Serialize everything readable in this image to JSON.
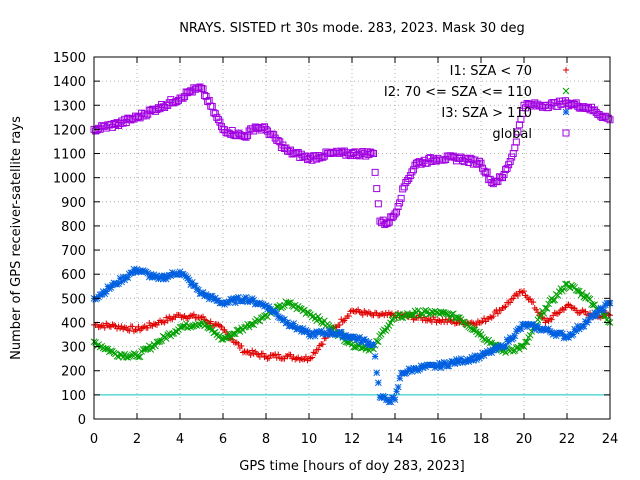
{
  "chart_data": {
    "type": "scatter",
    "title": "NRAYS. SISTED rt 30s mode. 283, 2023. Mask 30 deg",
    "xlabel": "GPS time [hours of doy 283, 2023]",
    "ylabel": "Number of GPS receiver-satellite rays",
    "xlim": [
      0,
      24
    ],
    "ylim": [
      0,
      1500
    ],
    "xticks": [
      "0",
      "2",
      "4",
      "6",
      "8",
      "10",
      "12",
      "14",
      "16",
      "18",
      "20",
      "22",
      "24"
    ],
    "yticks": [
      "0",
      "100",
      "200",
      "300",
      "400",
      "500",
      "600",
      "700",
      "800",
      "900",
      "1000",
      "1100",
      "1200",
      "1300",
      "1400",
      "1500"
    ],
    "grid": true,
    "legend_position": "top-right",
    "reference_line": {
      "y": 100,
      "color": "#00c8c8"
    },
    "series": [
      {
        "name": "I1: SZA < 70",
        "marker": "+",
        "color": "#e00000",
        "x": [
          0,
          1,
          2,
          3,
          4,
          5,
          6,
          7,
          8,
          9,
          10,
          11,
          12,
          13,
          13.5,
          14,
          15,
          16,
          17,
          18,
          19,
          19.5,
          20,
          21,
          22,
          23,
          24
        ],
        "y": [
          390,
          385,
          370,
          400,
          430,
          420,
          370,
          280,
          260,
          260,
          250,
          360,
          450,
          430,
          430,
          430,
          420,
          410,
          400,
          400,
          460,
          500,
          530,
          400,
          470,
          430,
          430
        ]
      },
      {
        "name": "I2: 70 <= SZA <= 110",
        "marker": "x",
        "color": "#00a000",
        "x": [
          0,
          1,
          2,
          3,
          4,
          5,
          6,
          7,
          8,
          9,
          10,
          11,
          12,
          13,
          13.5,
          14,
          15,
          16,
          17,
          18,
          19,
          20,
          21,
          22,
          23,
          24
        ],
        "y": [
          320,
          270,
          260,
          320,
          380,
          400,
          330,
          380,
          430,
          480,
          440,
          380,
          310,
          290,
          370,
          420,
          440,
          440,
          420,
          350,
          280,
          300,
          460,
          560,
          500,
          400
        ]
      },
      {
        "name": "I3: SZA > 110",
        "marker": "*",
        "color": "#0060e0",
        "x": [
          0,
          1,
          2,
          3,
          4,
          5,
          6,
          7,
          8,
          9,
          10,
          11,
          12,
          13,
          13.3,
          13.6,
          14,
          14.3,
          15,
          16,
          17,
          18,
          19,
          20,
          21,
          22,
          23,
          24
        ],
        "y": [
          500,
          560,
          620,
          580,
          610,
          520,
          480,
          500,
          470,
          400,
          350,
          360,
          340,
          310,
          90,
          80,
          80,
          190,
          210,
          220,
          240,
          260,
          300,
          390,
          370,
          340,
          410,
          480
        ]
      },
      {
        "name": "global",
        "marker": "square",
        "color": "#a000e0",
        "x": [
          0,
          1,
          2,
          3,
          4,
          4.5,
          5,
          6,
          7,
          7.5,
          8,
          9,
          10,
          11,
          12,
          13,
          13.3,
          13.6,
          14,
          14.5,
          15,
          16,
          17,
          18,
          18.5,
          19,
          19.5,
          20,
          21,
          22,
          23,
          24
        ],
        "y": [
          1200,
          1220,
          1250,
          1290,
          1330,
          1360,
          1370,
          1200,
          1170,
          1210,
          1200,
          1110,
          1080,
          1100,
          1100,
          1100,
          820,
          810,
          850,
          980,
          1060,
          1080,
          1080,
          1060,
          980,
          1000,
          1100,
          1300,
          1300,
          1310,
          1290,
          1240
        ]
      }
    ]
  }
}
